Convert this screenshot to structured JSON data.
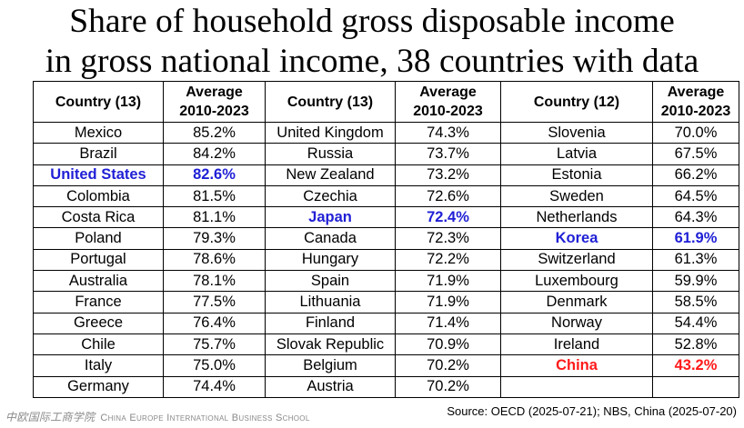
{
  "title_line1": "Share of household gross disposable income",
  "title_line2": "in gross national income, 38 countries with data",
  "source": "Source: OECD (2025-07-21); NBS, China (2025-07-20)",
  "logo": {
    "chinese": "中欧国际工商学院",
    "english": "China Europe International Business School"
  },
  "colors": {
    "highlight_blue": "#1f1fd6",
    "highlight_red": "#ff1a1a"
  },
  "chart_data": {
    "type": "table",
    "title": "Share of household gross disposable income in gross national income, 38 countries with data",
    "groups": [
      {
        "country_header": "Country (13)",
        "value_header": [
          "Average",
          "2010-2023"
        ],
        "rows": [
          {
            "country": "Mexico",
            "value": "85.2%"
          },
          {
            "country": "Brazil",
            "value": "84.2%"
          },
          {
            "country": "United States",
            "value": "82.6%",
            "highlight": "blue"
          },
          {
            "country": "Colombia",
            "value": "81.5%"
          },
          {
            "country": "Costa Rica",
            "value": "81.1%"
          },
          {
            "country": "Poland",
            "value": "79.3%"
          },
          {
            "country": "Portugal",
            "value": "78.6%"
          },
          {
            "country": "Australia",
            "value": "78.1%"
          },
          {
            "country": "France",
            "value": "77.5%"
          },
          {
            "country": "Greece",
            "value": "76.4%"
          },
          {
            "country": "Chile",
            "value": "75.7%"
          },
          {
            "country": "Italy",
            "value": "75.0%"
          },
          {
            "country": "Germany",
            "value": "74.4%"
          }
        ]
      },
      {
        "country_header": "Country (13)",
        "value_header": [
          "Average",
          "2010-2023"
        ],
        "rows": [
          {
            "country": "United Kingdom",
            "value": "74.3%"
          },
          {
            "country": "Russia",
            "value": "73.7%"
          },
          {
            "country": "New Zealand",
            "value": "73.2%"
          },
          {
            "country": "Czechia",
            "value": "72.6%"
          },
          {
            "country": "Japan",
            "value": "72.4%",
            "highlight": "blue"
          },
          {
            "country": "Canada",
            "value": "72.3%"
          },
          {
            "country": "Hungary",
            "value": "72.2%"
          },
          {
            "country": "Spain",
            "value": "71.9%"
          },
          {
            "country": "Lithuania",
            "value": "71.9%"
          },
          {
            "country": "Finland",
            "value": "71.4%"
          },
          {
            "country": "Slovak Republic",
            "value": "70.9%"
          },
          {
            "country": "Belgium",
            "value": "70.2%"
          },
          {
            "country": "Austria",
            "value": "70.2%"
          }
        ]
      },
      {
        "country_header": "Country (12)",
        "value_header": [
          "Average",
          "2010-2023"
        ],
        "rows": [
          {
            "country": "Slovenia",
            "value": "70.0%"
          },
          {
            "country": "Latvia",
            "value": "67.5%"
          },
          {
            "country": "Estonia",
            "value": "66.2%"
          },
          {
            "country": "Sweden",
            "value": "64.5%"
          },
          {
            "country": "Netherlands",
            "value": "64.3%"
          },
          {
            "country": "Korea",
            "value": "61.9%",
            "highlight": "blue"
          },
          {
            "country": "Switzerland",
            "value": "61.3%"
          },
          {
            "country": "Luxembourg",
            "value": "59.9%"
          },
          {
            "country": "Denmark",
            "value": "58.5%"
          },
          {
            "country": "Norway",
            "value": "54.4%"
          },
          {
            "country": "Ireland",
            "value": "52.8%"
          },
          {
            "country": "China",
            "value": "43.2%",
            "highlight": "red"
          },
          {
            "country": "",
            "value": ""
          }
        ]
      }
    ]
  }
}
